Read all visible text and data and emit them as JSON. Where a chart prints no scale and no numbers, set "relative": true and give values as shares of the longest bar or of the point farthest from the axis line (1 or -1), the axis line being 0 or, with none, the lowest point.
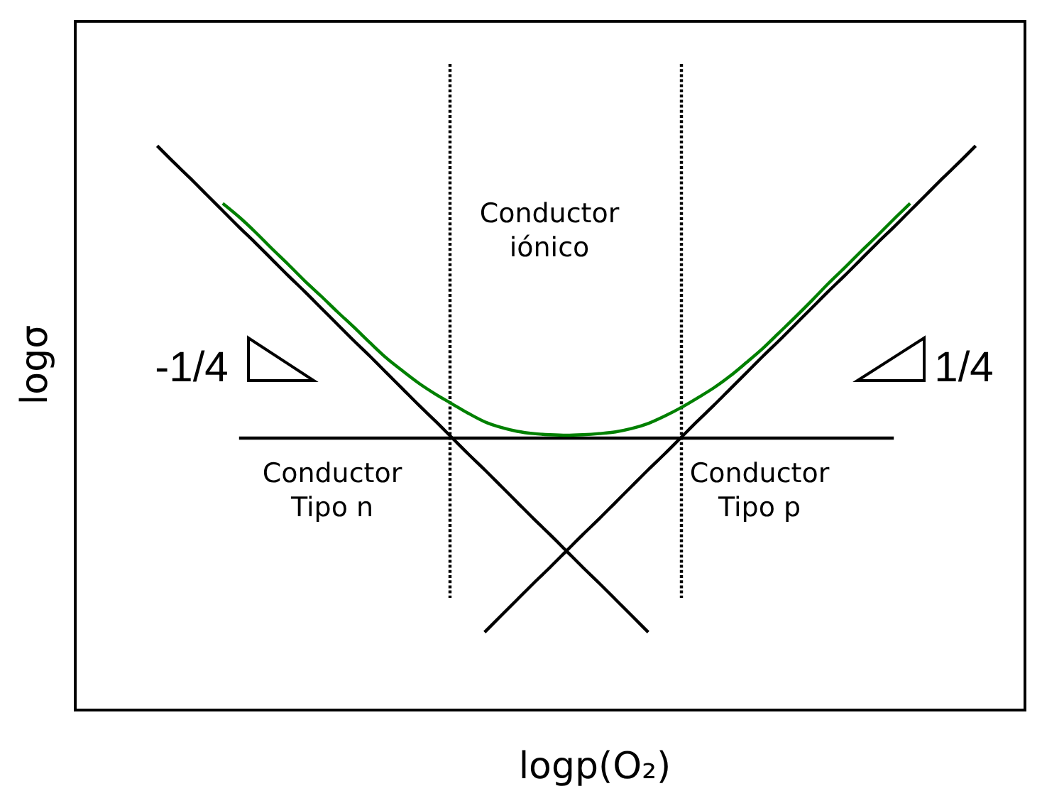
{
  "chart_data": {
    "type": "line",
    "relative": true,
    "xlabel": "logp(O₂)",
    "ylabel": "logσ",
    "categories": [
      null,
      null,
      null,
      null,
      null,
      null,
      null,
      null,
      null,
      null,
      null,
      null,
      null,
      null,
      null,
      null,
      null,
      null,
      null,
      null,
      null,
      null,
      null,
      null,
      null,
      null,
      null,
      null,
      null,
      null,
      null,
      null,
      null,
      null,
      null,
      null,
      null,
      null,
      null,
      null,
      null,
      null,
      null,
      null,
      null,
      null,
      null,
      null,
      null,
      null,
      null
    ],
    "series": [
      {
        "color": "#000000",
        "values": [
          1,
          0.971,
          0.943,
          0.914,
          0.885,
          0.856,
          0.828,
          0.799,
          0.77,
          0.742,
          0.713,
          0.684,
          0.655,
          0.627,
          0.598,
          0.569,
          0.54,
          0.512,
          0.483,
          0.454,
          0.426,
          0.397,
          0.368,
          0.339,
          0.311,
          0.282,
          0.253,
          0.225,
          0.196,
          0.167,
          0.138,
          null,
          null,
          null,
          null,
          null,
          null,
          null,
          null,
          null,
          null,
          null,
          null,
          null,
          null,
          null,
          null,
          null,
          null,
          null,
          null
        ]
      },
      {
        "color": "#000000",
        "values": [
          null,
          null,
          null,
          null,
          null,
          null,
          null,
          null,
          null,
          null,
          null,
          null,
          null,
          null,
          null,
          null,
          null,
          null,
          null,
          null,
          0.138,
          0.167,
          0.196,
          0.225,
          0.253,
          0.282,
          0.311,
          0.339,
          0.368,
          0.397,
          0.426,
          0.454,
          0.483,
          0.512,
          0.54,
          0.569,
          0.598,
          0.627,
          0.655,
          0.684,
          0.713,
          0.742,
          0.77,
          0.799,
          0.828,
          0.856,
          0.885,
          0.914,
          0.943,
          0.971,
          1
        ]
      },
      {
        "color": "#000000",
        "values": [
          null,
          null,
          null,
          null,
          null,
          0.482,
          0.482,
          0.482,
          0.482,
          0.482,
          0.482,
          0.482,
          0.482,
          0.482,
          0.482,
          0.482,
          0.482,
          0.482,
          0.482,
          0.482,
          0.482,
          0.482,
          0.482,
          0.482,
          0.482,
          0.482,
          0.482,
          0.482,
          0.482,
          0.482,
          0.482,
          0.482,
          0.482,
          0.482,
          0.482,
          0.482,
          0.482,
          0.482,
          0.482,
          0.482,
          0.482,
          0.482,
          0.482,
          0.482,
          0.482,
          0.482,
          null,
          null,
          null,
          null,
          null
        ]
      },
      {
        "color": "#008000",
        "values": [
          null,
          null,
          null,
          null,
          0.898,
          0.874,
          0.847,
          0.818,
          0.79,
          0.761,
          0.734,
          0.706,
          0.679,
          0.651,
          0.624,
          0.601,
          0.579,
          0.56,
          0.543,
          0.526,
          0.511,
          0.501,
          0.494,
          0.49,
          0.488,
          0.487,
          0.488,
          0.49,
          0.493,
          0.499,
          0.508,
          0.521,
          0.536,
          0.553,
          0.571,
          0.592,
          0.616,
          0.641,
          0.669,
          0.697,
          0.726,
          0.756,
          0.784,
          0.813,
          0.841,
          0.87,
          0.898,
          null,
          null,
          null,
          null
        ]
      }
    ],
    "annotations": [
      "Conductor\niónico",
      "Conductor\nTipo n",
      "Conductor\nTipo p",
      "-1/4",
      "1/4"
    ]
  }
}
